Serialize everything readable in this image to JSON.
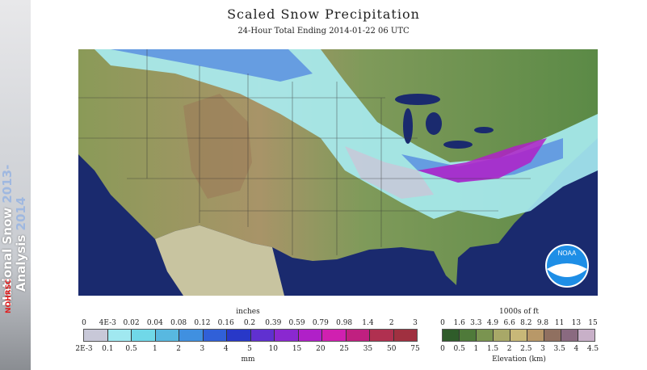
{
  "sidebar": {
    "line1": "National Snow",
    "year1": "2013-",
    "line2": "Analysis",
    "year2": "2014",
    "logo": "NOHRSC"
  },
  "header": {
    "title": "Scaled Snow Precipitation",
    "subtitle": "24-Hour Total Ending 2014-01-22 06 UTC"
  },
  "map": {
    "logo_text": "NOAA",
    "snow_region": "northern plains, upper midwest, great lakes, mid-atlantic"
  },
  "precip_legend": {
    "top_label": "inches",
    "bottom_label": "mm",
    "inches_ticks": [
      "0",
      "4E-3",
      "0.02",
      "0.04",
      "0.08",
      "0.12",
      "0.16",
      "0.2",
      "0.39",
      "0.59",
      "0.79",
      "0.98",
      "1.4",
      "2",
      "3"
    ],
    "mm_ticks": [
      "2E-3",
      "0.1",
      "0.5",
      "1",
      "2",
      "3",
      "4",
      "5",
      "10",
      "15",
      "20",
      "25",
      "35",
      "50",
      "75"
    ],
    "colors": [
      "#c8c8d8",
      "#a0e8f0",
      "#70d8e8",
      "#58b8e0",
      "#4090e0",
      "#3060d8",
      "#2838c8",
      "#6030d0",
      "#8a28d0",
      "#b020c8",
      "#d020b0",
      "#c02080",
      "#b03050",
      "#a03040"
    ]
  },
  "elevation_legend": {
    "top_label": "1000s of ft",
    "bottom_label": "Elevation (km)",
    "ft_ticks": [
      "0",
      "1.6",
      "3.3",
      "4.9",
      "6.6",
      "8.2",
      "9.8",
      "11",
      "13",
      "15"
    ],
    "km_ticks": [
      "0",
      "0.5",
      "1",
      "1.5",
      "2",
      "2.5",
      "3",
      "3.5",
      "4",
      "4.5"
    ],
    "colors": [
      "#2f5c2a",
      "#4f7a3a",
      "#7a9450",
      "#a8a868",
      "#c8b878",
      "#b89868",
      "#907060",
      "#8a6a80",
      "#c8b0c8"
    ]
  }
}
